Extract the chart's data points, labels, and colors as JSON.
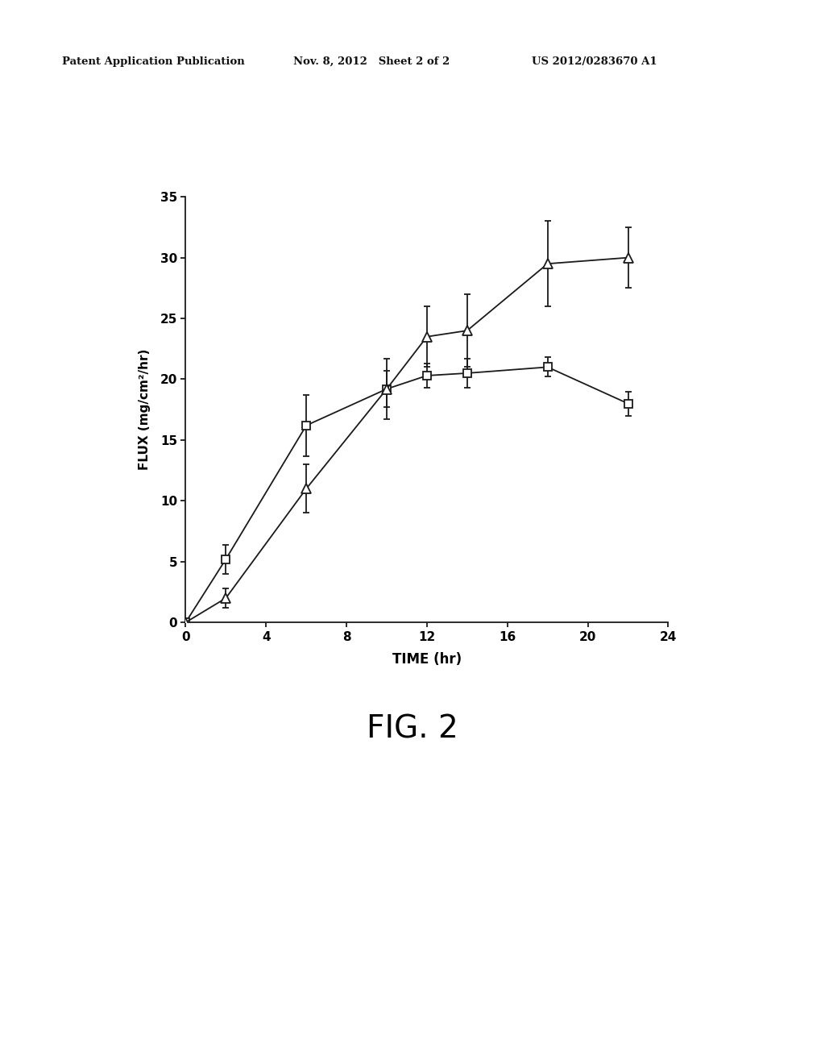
{
  "square_x": [
    0,
    2,
    6,
    10,
    12,
    14,
    18,
    22
  ],
  "square_y": [
    0,
    5.2,
    16.2,
    19.2,
    20.3,
    20.5,
    21.0,
    18.0
  ],
  "square_yerr": [
    0,
    1.2,
    2.5,
    1.5,
    1.0,
    1.2,
    0.8,
    1.0
  ],
  "triangle_x": [
    0,
    2,
    6,
    10,
    12,
    14,
    18,
    22
  ],
  "triangle_y": [
    0,
    2.0,
    11.0,
    19.2,
    23.5,
    24.0,
    29.5,
    30.0
  ],
  "triangle_yerr": [
    0,
    0.8,
    2.0,
    2.5,
    2.5,
    3.0,
    3.5,
    2.5
  ],
  "xlabel": "TIME (hr)",
  "ylabel": "FLUX (mg/cm²/hr)",
  "xlim": [
    0,
    24
  ],
  "ylim": [
    0,
    35
  ],
  "xticks": [
    0,
    4,
    8,
    12,
    16,
    20,
    24
  ],
  "yticks": [
    0,
    5,
    10,
    15,
    20,
    25,
    30,
    35
  ],
  "fig_caption": "FIG. 2",
  "header_left": "Patent Application Publication",
  "header_center": "Nov. 8, 2012   Sheet 2 of 2",
  "header_right": "US 2012/0283670 A1",
  "line_color": "#1a1a1a",
  "background_color": "#ffffff"
}
